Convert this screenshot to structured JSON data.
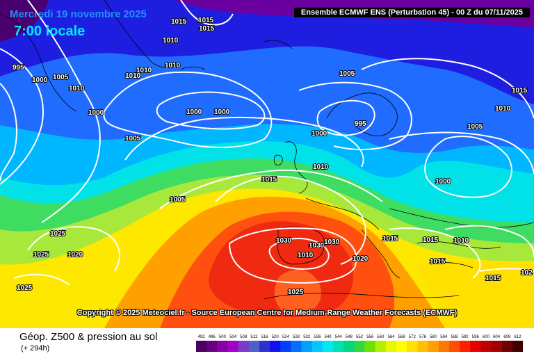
{
  "header": {
    "date": "Mercredi 19 novembre 2025",
    "local_time": "7:00 locale",
    "model_info": "Ensemble ECMWF ENS  (Perturbation 45)  - 00 Z du 07/11/2025"
  },
  "copyright": "Copyright © 2025 Meteociel.fr - Source European Centre for Medium-Range Weather Forecasts (ECMWF)",
  "footer": {
    "title": "Géop. Z500 & pression au sol",
    "forecast_hour": "(+ 294h)"
  },
  "legend": {
    "values": [
      "492",
      "496",
      "500",
      "504",
      "508",
      "512",
      "516",
      "520",
      "524",
      "528",
      "532",
      "536",
      "540",
      "544",
      "548",
      "552",
      "556",
      "560",
      "564",
      "568",
      "572",
      "576",
      "580",
      "584",
      "588",
      "592",
      "596",
      "600",
      "604",
      "608",
      "612"
    ],
    "colors": [
      "#4b0060",
      "#6a0080",
      "#8a00a8",
      "#a000c8",
      "#7a3cc8",
      "#5060c8",
      "#3030d0",
      "#1010f0",
      "#0040ff",
      "#0070ff",
      "#00a0ff",
      "#00c8ff",
      "#00e8f0",
      "#00e0b0",
      "#00d880",
      "#30d840",
      "#70e000",
      "#b0f000",
      "#e8f800",
      "#ffff00",
      "#ffe000",
      "#ffc000",
      "#ffa000",
      "#ff7800",
      "#ff5000",
      "#ff2000",
      "#e80000",
      "#c00000",
      "#a00000",
      "#700000",
      "#400000"
    ]
  },
  "map_colors": {
    "purple": "#6a00a0",
    "dark_blue": "#1e1ee0",
    "blue": "#1f6cff",
    "light_blue": "#00b6ff",
    "cyan": "#00e2e8",
    "green": "#3fdc62",
    "yellow_green": "#a8e83a",
    "yellow": "#ffe800",
    "orange": "#ffa000",
    "red_orange": "#ff5010",
    "red": "#f02a10",
    "isobar": "#ffffff",
    "coast": "#000000"
  },
  "isobar_labels": [
    "1015",
    "1015",
    "1015",
    "1010",
    "1010",
    "1010",
    "1010",
    "995",
    "1000",
    "1005",
    "1010",
    "1000",
    "1005",
    "1000",
    "1000",
    "1005",
    "1010",
    "1005",
    "995",
    "1000",
    "1015",
    "1010",
    "1005",
    "1000",
    "1015",
    "1025",
    "1025",
    "1020",
    "1025",
    "1030",
    "1030",
    "1030",
    "1020",
    "1015",
    "1015",
    "1010",
    "1025",
    "1015",
    "102",
    "1015",
    "1010"
  ]
}
